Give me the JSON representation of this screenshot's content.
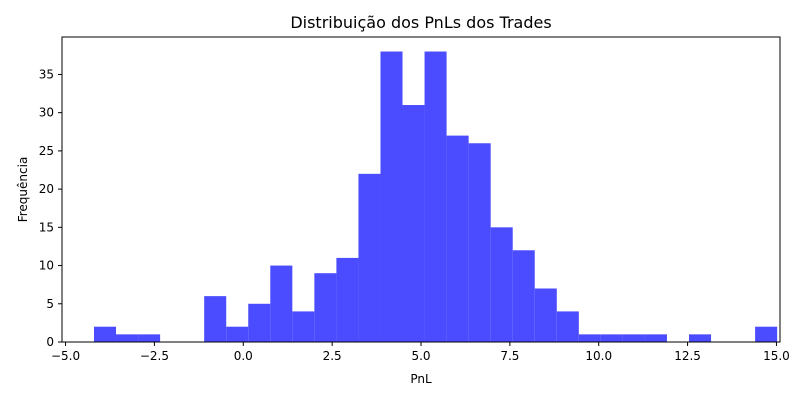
{
  "chart_data": {
    "type": "bar",
    "subtype": "histogram",
    "title": "Distribuição dos PnLs dos Trades",
    "xlabel": "PnL",
    "ylabel": "Frequência",
    "bar_color": "#4b4bff",
    "grid": false,
    "legend": "none",
    "xlim": [
      -5.1,
      15.1
    ],
    "ylim": [
      0,
      39.9
    ],
    "x_ticks": [
      -5.0,
      -2.5,
      0.0,
      2.5,
      5.0,
      7.5,
      10.0,
      12.5,
      15.0
    ],
    "x_tick_labels": [
      "−5.0",
      "−2.5",
      "0.0",
      "2.5",
      "5.0",
      "7.5",
      "10.0",
      "12.5",
      "15.0"
    ],
    "y_ticks": [
      0,
      5,
      10,
      15,
      20,
      25,
      30,
      35
    ],
    "y_tick_labels": [
      "0",
      "5",
      "10",
      "15",
      "20",
      "25",
      "30",
      "35"
    ],
    "bin_start": -4.2,
    "bin_width": 0.62,
    "values": [
      2,
      1,
      1,
      0,
      0,
      6,
      2,
      5,
      10,
      4,
      9,
      11,
      22,
      38,
      31,
      38,
      27,
      26,
      15,
      12,
      7,
      4,
      1,
      1,
      1,
      1,
      0,
      1,
      0,
      0,
      2
    ]
  }
}
